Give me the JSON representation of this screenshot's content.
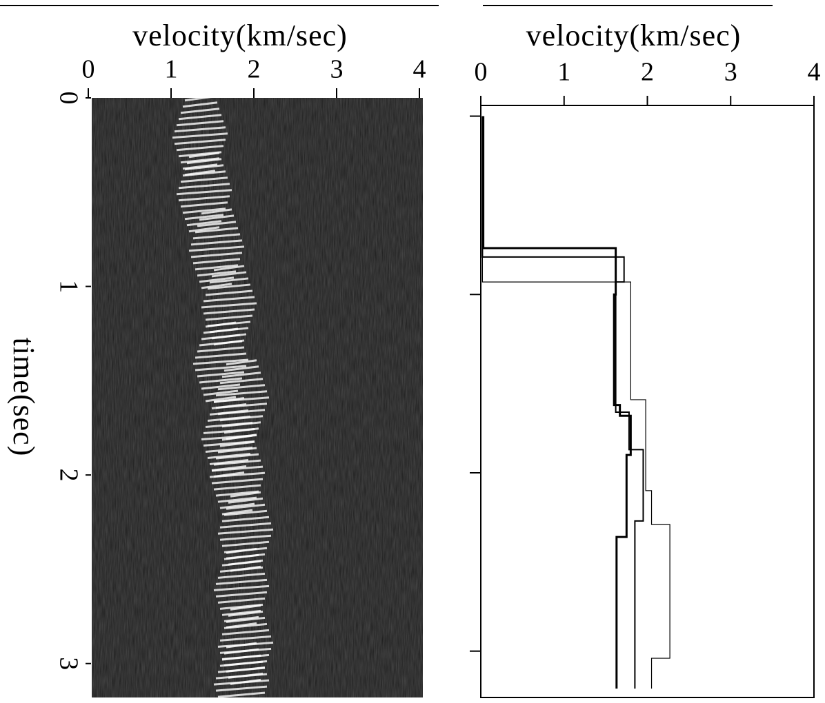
{
  "chart_data": [
    {
      "type": "image",
      "xlabel": "velocity(km/sec)",
      "ylabel": "time(sec)",
      "xlim": [
        0,
        4
      ],
      "xticks": [
        0,
        1,
        2,
        3,
        4
      ],
      "ylim": [
        0,
        3.18
      ],
      "yticks": [
        0,
        1,
        2,
        3
      ],
      "x": [
        0.2,
        0.5,
        0.8,
        1.1,
        1.4,
        1.6,
        1.8,
        2.0,
        2.3,
        2.6,
        2.9,
        3.1
      ],
      "values": [
        1.35,
        1.4,
        1.55,
        1.7,
        1.6,
        1.85,
        1.7,
        1.8,
        1.9,
        1.85,
        1.9,
        1.85
      ],
      "color": "#ffffff"
    },
    {
      "type": "line",
      "xlabel": "velocity(km/sec)",
      "xlim": [
        0,
        4
      ],
      "xticks": [
        0,
        1,
        2,
        3,
        4
      ],
      "ylim": [
        -0.06,
        3.26
      ],
      "yticks": [
        0,
        1,
        2,
        3
      ],
      "ytick_labels": false,
      "series": [
        {
          "color": "#000000",
          "width": 3,
          "x": [
            0,
            0.74,
            0.74,
            1.0,
            1.0,
            1.62,
            1.62,
            1.68,
            1.68,
            1.9,
            1.9,
            2.36,
            2.36,
            3.21
          ],
          "values": [
            0.03,
            0.03,
            1.62,
            1.62,
            1.6,
            1.6,
            1.67,
            1.67,
            1.8,
            1.8,
            1.75,
            1.75,
            1.63,
            1.63
          ]
        },
        {
          "color": "#000000",
          "width": 2,
          "x": [
            0,
            0.79,
            0.79,
            0.93,
            0.93,
            1.66,
            1.66,
            1.87,
            1.87,
            2.27,
            2.27,
            3.21
          ],
          "values": [
            0.02,
            0.02,
            1.72,
            1.72,
            1.62,
            1.62,
            1.78,
            1.78,
            1.95,
            1.95,
            1.85,
            1.85
          ]
        },
        {
          "color": "#000000",
          "width": 1.2,
          "x": [
            0,
            0.93,
            0.93,
            1.59,
            1.59,
            2.1,
            2.1,
            2.29,
            2.29,
            3.04,
            3.04,
            3.21
          ],
          "values": [
            0.02,
            0.02,
            1.8,
            1.8,
            1.98,
            1.98,
            2.05,
            2.05,
            2.27,
            2.27,
            2.05,
            2.05
          ]
        }
      ]
    }
  ]
}
